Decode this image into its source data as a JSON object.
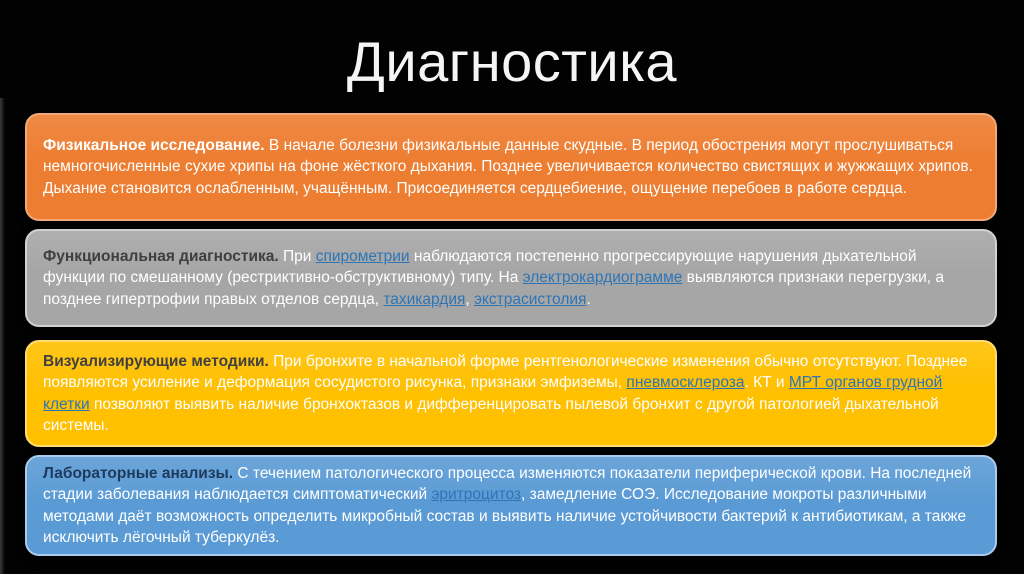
{
  "slide": {
    "title": "Диагностика",
    "background_color": "#020202",
    "title_color": "#F5F5F5",
    "body_text_color": "#FFFFFF",
    "boxes": [
      {
        "id": "physical-examination",
        "fill": "#ED7D31",
        "border": "#F2A878",
        "heading_color": "#FFFFFF",
        "link_color": "#2E75B6",
        "heading": "Физикальное исследование.",
        "segments": [
          {
            "t": "В начале болезни физикальные данные скудные. В период обострения могут прослушиваться немногочисленные сухие хрипы на фоне жёсткого дыхания. Позднее увеличивается количество свистящих и жужжащих хрипов. Дыхание становится ослабленным, учащённым. Присоединяется сердцебиение, ощущение перебоев в работе сердца."
          }
        ]
      },
      {
        "id": "functional-diagnostics",
        "fill": "#A6A6A6",
        "border": "#D2D2D2",
        "heading_color": "#3F3F3F",
        "link_color": "#2E75B6",
        "heading": "Функциональная диагностика.",
        "segments": [
          {
            "t": "При "
          },
          {
            "t": "спирометрии",
            "link": true,
            "name": "link-spirometry"
          },
          {
            "t": " наблюдаются постепенно прогрессирующие нарушения дыхательной функции по смешанному (рестриктивно-обструктивному) типу. На "
          },
          {
            "t": "электрокардиограмме",
            "link": true,
            "name": "link-electrocardiogram"
          },
          {
            "t": " выявляются признаки перегрузки, а позднее гипертрофии правых отделов сердца, "
          },
          {
            "t": "тахикардия",
            "link": true,
            "name": "link-tachycardia"
          },
          {
            "t": ", "
          },
          {
            "t": "экстрасистолия",
            "link": true,
            "name": "link-extrasystole"
          },
          {
            "t": "."
          }
        ]
      },
      {
        "id": "imaging-methods",
        "fill": "#FFC000",
        "border": "#FFDC70",
        "heading_color": "#404040",
        "link_color": "#2E75B6",
        "heading": "Визуализирующие методики.",
        "segments": [
          {
            "t": "При бронхите в начальной форме рентгенологические изменения обычно отсутствуют. Позднее появляются усиление и деформация сосудистого рисунка, признаки эмфиземы, "
          },
          {
            "t": "пневмосклероза",
            "link": true,
            "name": "link-pneumosclerosis"
          },
          {
            "t": ". КТ и "
          },
          {
            "t": "МРТ органов грудной клетки",
            "link": true,
            "name": "link-mrt-chest"
          },
          {
            "t": " позволяют выявить наличие бронхоктазов и дифференцировать пылевой бронхит с другой патологией дыхательной системы."
          }
        ]
      },
      {
        "id": "laboratory-tests",
        "fill": "#5B9BD5",
        "border": "#A9CCEC",
        "heading_color": "#1E3A5C",
        "link_color": "#2E75B6",
        "heading": "Лабораторные анализы.",
        "segments": [
          {
            "t": "С течением патологического процесса изменяются показатели периферической крови. На последней стадии заболевания наблюдается симптоматический "
          },
          {
            "t": "эритроцитоз",
            "link": true,
            "name": "link-erythrocytosis"
          },
          {
            "t": ", замедление СОЭ. Исследование мокроты различными методами даёт возможность определить микробный состав и выявить наличие устойчивости бактерий к антибиотикам, а также исключить лёгочный туберкулёз."
          }
        ]
      }
    ]
  }
}
